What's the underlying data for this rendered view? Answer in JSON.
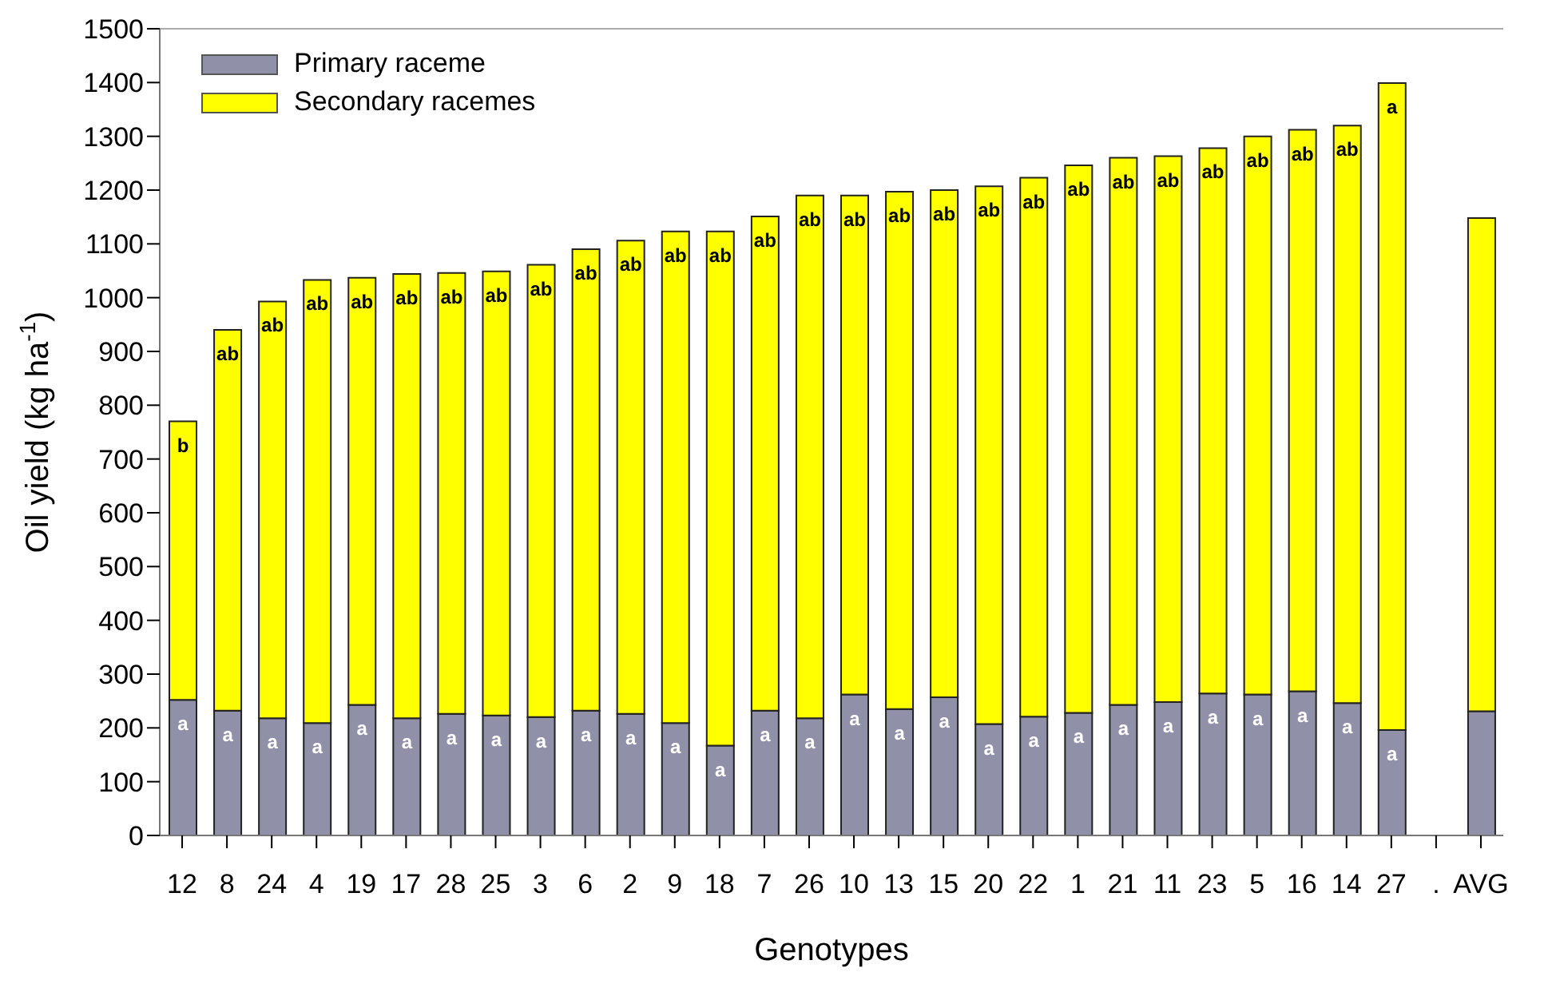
{
  "chart_data": {
    "type": "bar",
    "stacked": true,
    "xlabel": "Genotypes",
    "ylabel": "Oil yield (kg ha$^{-1}$)",
    "categories": [
      "12",
      "8",
      "24",
      "4",
      "19",
      "17",
      "28",
      "25",
      "3",
      "6",
      "2",
      "9",
      "18",
      "7",
      "26",
      "10",
      "13",
      "15",
      "20",
      "22",
      "1",
      "21",
      "11",
      "23",
      "5",
      "16",
      "14",
      "27",
      ".",
      "AVG"
    ],
    "series": [
      {
        "name": "Primary raceme",
        "color": "#9090a8",
        "values": [
          252,
          232,
          218,
          209,
          243,
          218,
          226,
          223,
          220,
          232,
          226,
          209,
          167,
          232,
          218,
          262,
          235,
          257,
          207,
          221,
          228,
          243,
          248,
          264,
          262,
          268,
          246,
          196,
          null,
          231
        ],
        "value_labels": [
          "a",
          "a",
          "a",
          "a",
          "a",
          "a",
          "a",
          "a",
          "a",
          "a",
          "a",
          "a",
          "a",
          "a",
          "a",
          "a",
          "a",
          "a",
          "a",
          "a",
          "a",
          "a",
          "a",
          "a",
          "a",
          "a",
          "a",
          "a",
          null,
          null
        ]
      },
      {
        "name": "Secondary racemes",
        "color": "#ffff00",
        "values": [
          518,
          708,
          775,
          824,
          794,
          826,
          820,
          826,
          841,
          858,
          880,
          914,
          956,
          919,
          972,
          928,
          962,
          943,
          1000,
          1002,
          1018,
          1017,
          1015,
          1014,
          1038,
          1044,
          1074,
          1203,
          null,
          917
        ],
        "value_labels": [
          "b",
          "ab",
          "ab",
          "ab",
          "ab",
          "ab",
          "ab",
          "ab",
          "ab",
          "ab",
          "ab",
          "ab",
          "ab",
          "ab",
          "ab",
          "ab",
          "ab",
          "ab",
          "ab",
          "ab",
          "ab",
          "ab",
          "ab",
          "ab",
          "ab",
          "ab",
          "ab",
          "a",
          null,
          null
        ]
      }
    ],
    "ylim": [
      0,
      1500
    ],
    "yticks": [
      0,
      100,
      200,
      300,
      400,
      500,
      600,
      700,
      800,
      900,
      1000,
      1100,
      1200,
      1300,
      1400,
      1500
    ],
    "grid": false,
    "legend": "top left"
  }
}
